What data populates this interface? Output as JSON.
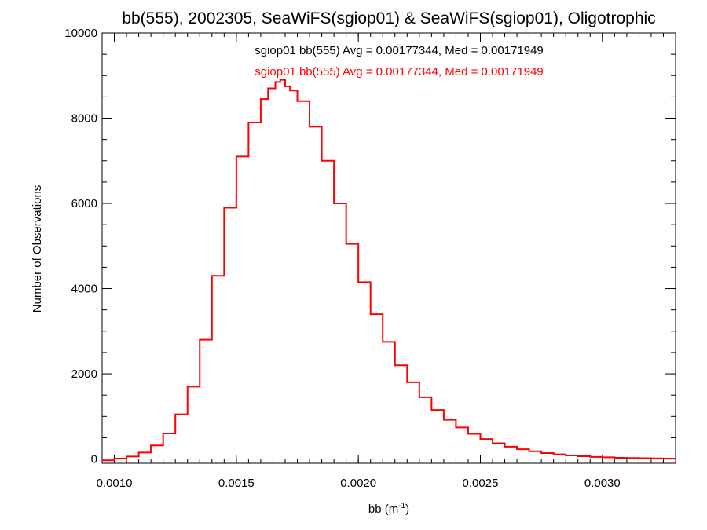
{
  "chart_data": {
    "type": "line",
    "title": "bb(555), 2002305, SeaWiFS(sgiop01) & SeaWiFS(sgiop01), Oligotrophic",
    "xlabel": "bb (m",
    "xlabel_sup": "-1",
    "xlabel_close": ")",
    "ylabel": "Number of Observations",
    "xlim": [
      0.00095,
      0.0033
    ],
    "ylim": [
      -100,
      10000
    ],
    "xticks": [
      0.001,
      0.0015,
      0.002,
      0.0025,
      0.003
    ],
    "xtick_labels": [
      "0.0010",
      "0.0015",
      "0.0020",
      "0.0025",
      "0.0030"
    ],
    "yticks": [
      0,
      2000,
      4000,
      6000,
      8000,
      10000
    ],
    "ytick_labels": [
      "0",
      "2000",
      "4000",
      "6000",
      "8000",
      "10000"
    ],
    "grid": false,
    "annotations": [
      {
        "text": "sgiop01 bb(555) Avg = 0.00177344, Med = 0.00171949",
        "color": "#000000"
      },
      {
        "text": "sgiop01 bb(555) Avg = 0.00177344, Med = 0.00171949",
        "color": "#ff0000"
      }
    ],
    "series": [
      {
        "color": "#ff0000",
        "x": [
          0.00095,
          0.001,
          0.00105,
          0.0011,
          0.00115,
          0.0012,
          0.00125,
          0.0013,
          0.00135,
          0.0014,
          0.00145,
          0.0015,
          0.00155,
          0.0016,
          0.00163,
          0.00166,
          0.00168,
          0.0017,
          0.00172,
          0.00175,
          0.0018,
          0.00185,
          0.0019,
          0.00195,
          0.002,
          0.00205,
          0.0021,
          0.00215,
          0.0022,
          0.00225,
          0.0023,
          0.00235,
          0.0024,
          0.00245,
          0.0025,
          0.00255,
          0.0026,
          0.00265,
          0.0027,
          0.00275,
          0.0028,
          0.00285,
          0.0029,
          0.00295,
          0.003,
          0.00305,
          0.0031,
          0.00315,
          0.0032,
          0.00325,
          0.0033
        ],
        "y": [
          -30,
          10,
          60,
          150,
          320,
          600,
          1050,
          1700,
          2800,
          4300,
          5900,
          7100,
          7900,
          8450,
          8700,
          8850,
          8900,
          8750,
          8650,
          8400,
          7800,
          7000,
          6000,
          5050,
          4150,
          3400,
          2750,
          2200,
          1800,
          1450,
          1150,
          920,
          740,
          590,
          470,
          370,
          290,
          230,
          180,
          140,
          110,
          85,
          65,
          50,
          40,
          30,
          25,
          20,
          15,
          10,
          5
        ]
      }
    ]
  }
}
